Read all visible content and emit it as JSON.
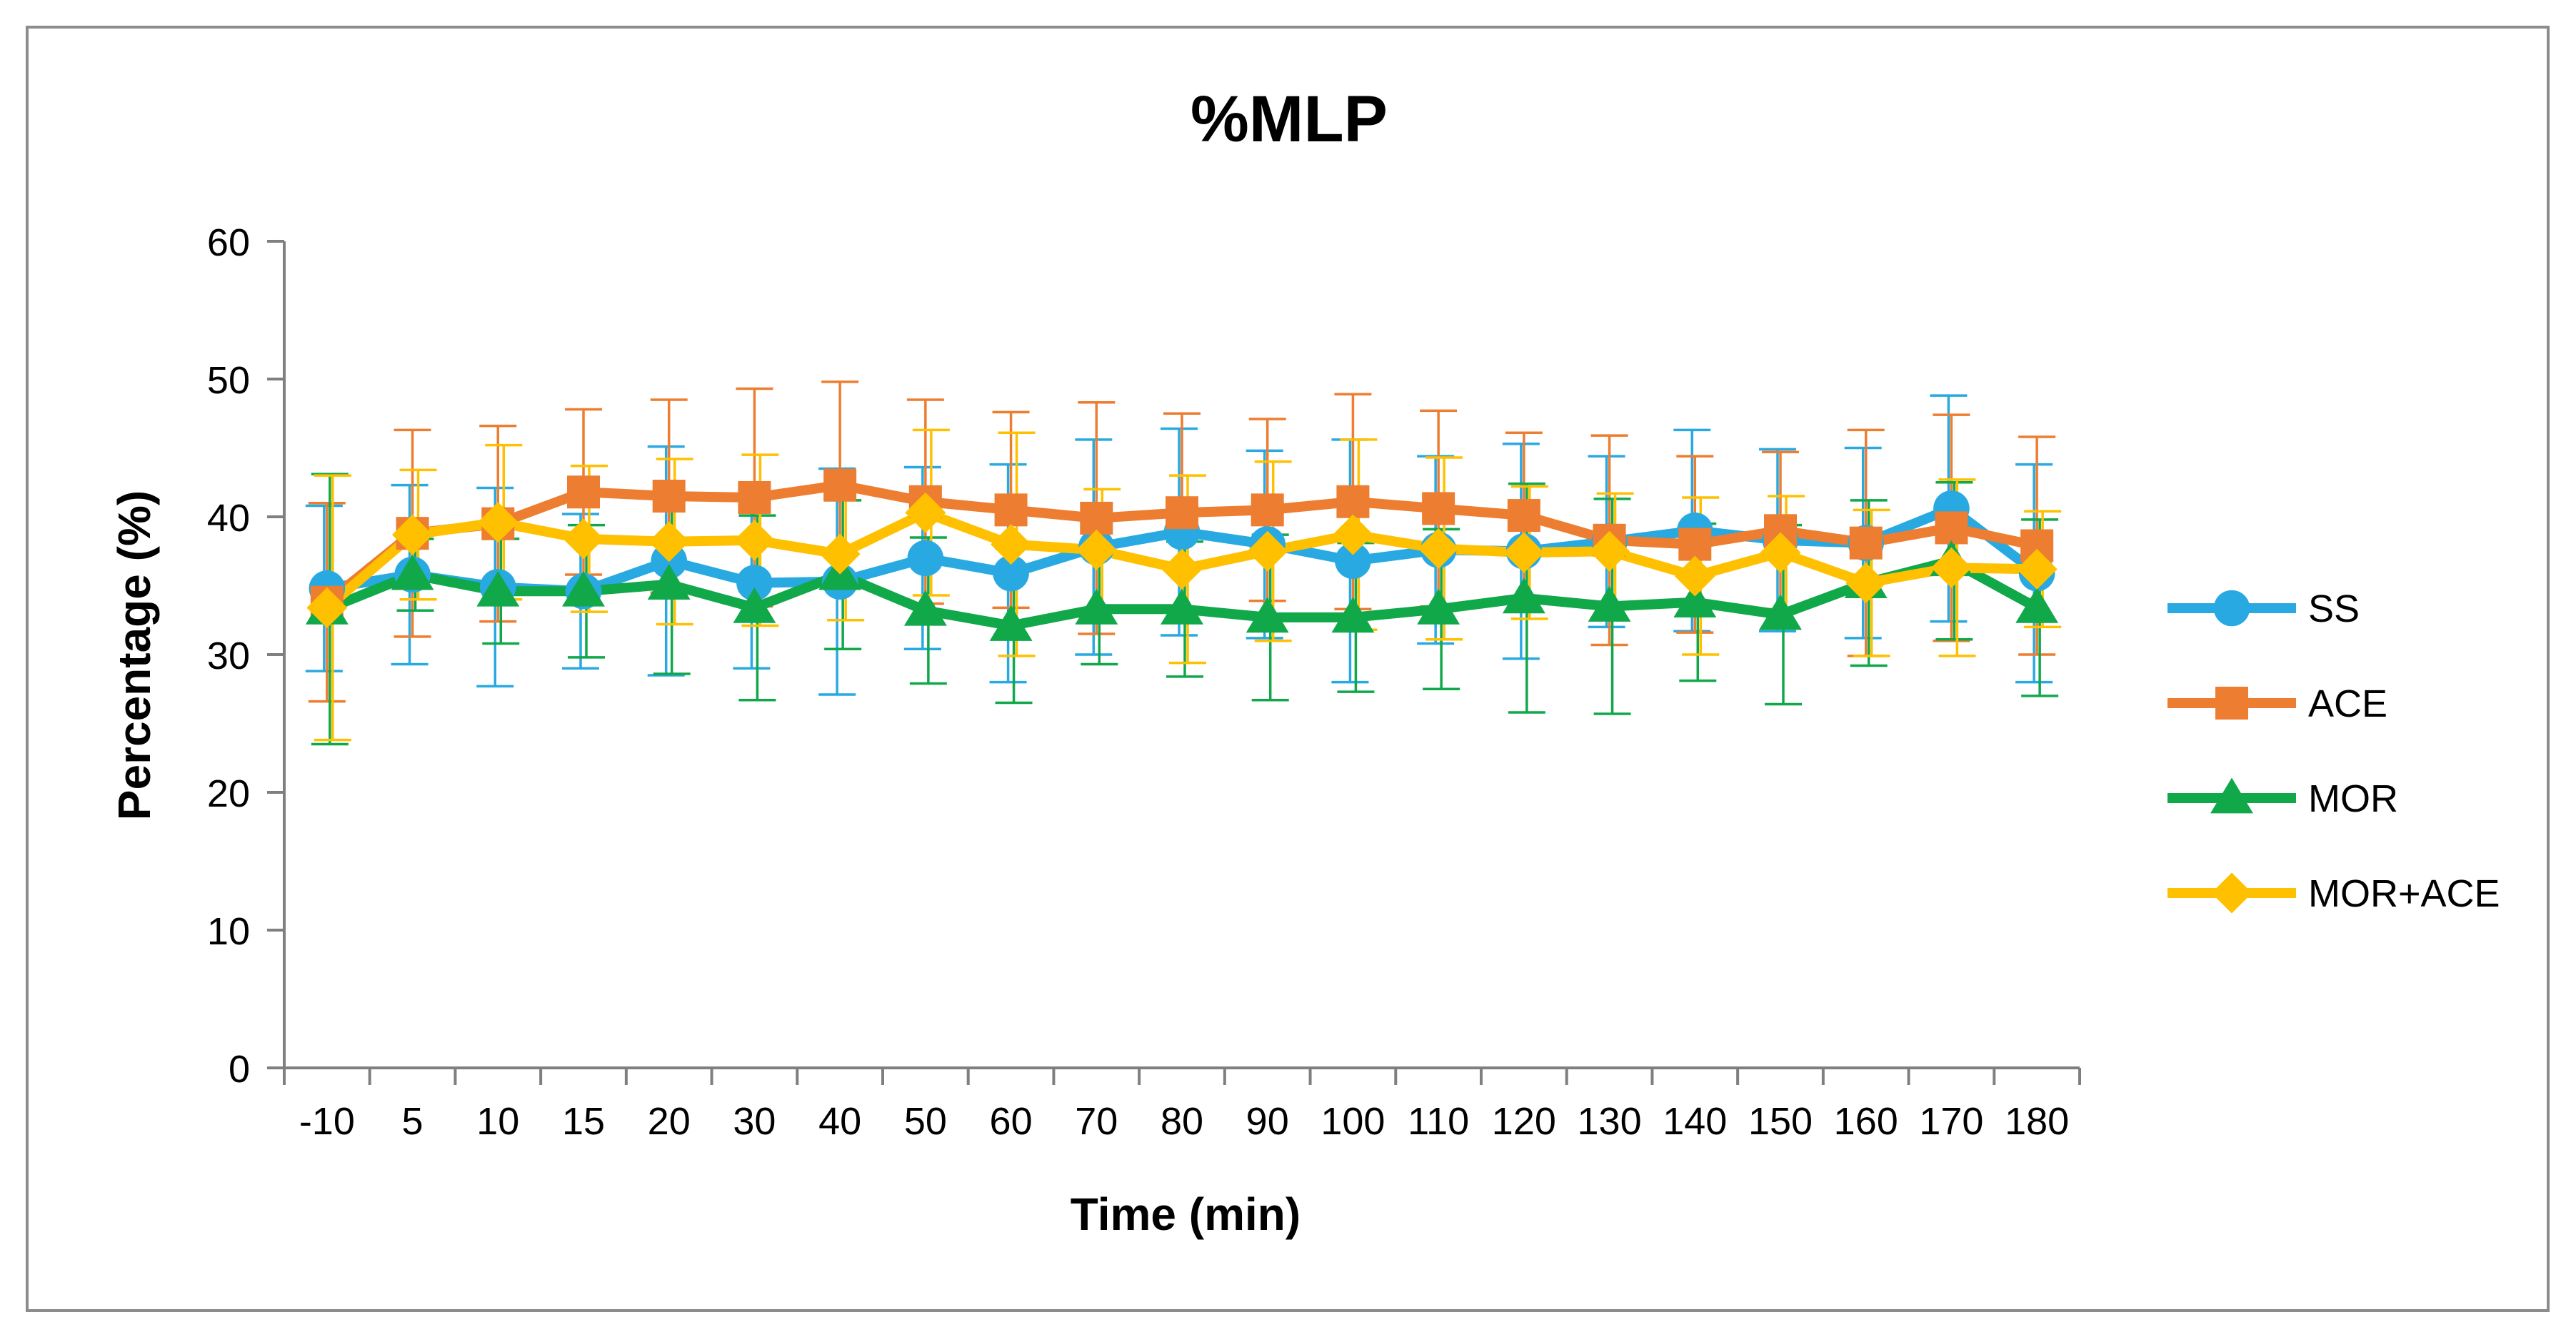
{
  "chart_data": {
    "type": "line",
    "title": "%MLP",
    "xlabel": "Time (min)",
    "ylabel": "Percentage (%)",
    "categories": [
      "-10",
      "5",
      "10",
      "15",
      "20",
      "30",
      "40",
      "50",
      "60",
      "70",
      "80",
      "90",
      "100",
      "110",
      "120",
      "130",
      "140",
      "150",
      "160",
      "170",
      "180"
    ],
    "ylim": [
      0,
      60
    ],
    "yticks": [
      0,
      10,
      20,
      30,
      40,
      50,
      60
    ],
    "grid": false,
    "legend": "right",
    "series": [
      {
        "name": "SS",
        "color": "#29A9E1",
        "marker": "circle",
        "values": [
          34.8,
          35.8,
          34.9,
          34.6,
          36.8,
          35.2,
          35.3,
          37.0,
          35.9,
          37.8,
          38.9,
          38.0,
          36.8,
          37.6,
          37.5,
          38.2,
          39.0,
          38.3,
          38.1,
          40.6,
          35.9
        ],
        "errors": [
          6.0,
          6.5,
          7.2,
          5.6,
          8.3,
          6.2,
          8.2,
          6.6,
          7.9,
          7.8,
          7.5,
          6.8,
          8.8,
          6.8,
          7.8,
          6.2,
          7.3,
          6.6,
          6.9,
          8.2,
          7.9
        ]
      },
      {
        "name": "ACE",
        "color": "#ED7D31",
        "marker": "square",
        "values": [
          33.8,
          38.8,
          39.5,
          41.8,
          41.5,
          41.4,
          42.3,
          41.1,
          40.5,
          39.9,
          40.3,
          40.5,
          41.1,
          40.6,
          40.1,
          38.3,
          38.0,
          39.0,
          38.1,
          39.2,
          37.9
        ],
        "errors": [
          7.2,
          7.5,
          7.1,
          6.0,
          7.0,
          7.9,
          7.5,
          7.4,
          7.1,
          8.4,
          7.2,
          6.6,
          7.8,
          7.1,
          6.0,
          7.6,
          6.4,
          5.7,
          8.2,
          8.2,
          7.9
        ]
      },
      {
        "name": "MOR",
        "color": "#11A84A",
        "marker": "triangle",
        "values": [
          33.3,
          35.8,
          34.6,
          34.6,
          35.1,
          33.4,
          35.8,
          33.2,
          32.1,
          33.3,
          33.3,
          32.7,
          32.7,
          33.3,
          34.1,
          33.5,
          33.8,
          32.9,
          35.2,
          36.8,
          33.4
        ],
        "errors": [
          9.8,
          2.6,
          3.8,
          4.8,
          6.5,
          6.7,
          5.4,
          5.3,
          5.6,
          4.0,
          4.9,
          6.0,
          5.4,
          5.8,
          8.3,
          7.8,
          5.7,
          6.5,
          6.0,
          5.7,
          6.4
        ]
      },
      {
        "name": "MOR+ACE",
        "color": "#FFC000",
        "marker": "diamond",
        "values": [
          33.4,
          38.7,
          39.6,
          38.4,
          38.2,
          38.3,
          37.3,
          40.3,
          38.0,
          37.6,
          36.2,
          37.5,
          38.7,
          37.7,
          37.4,
          37.5,
          35.7,
          37.4,
          35.2,
          36.3,
          36.2
        ],
        "errors": [
          9.6,
          4.7,
          5.6,
          5.3,
          6.0,
          6.2,
          4.8,
          6.0,
          8.1,
          4.4,
          6.8,
          6.5,
          6.9,
          6.6,
          4.8,
          4.2,
          5.7,
          4.1,
          5.3,
          6.4,
          4.2
        ]
      }
    ]
  }
}
